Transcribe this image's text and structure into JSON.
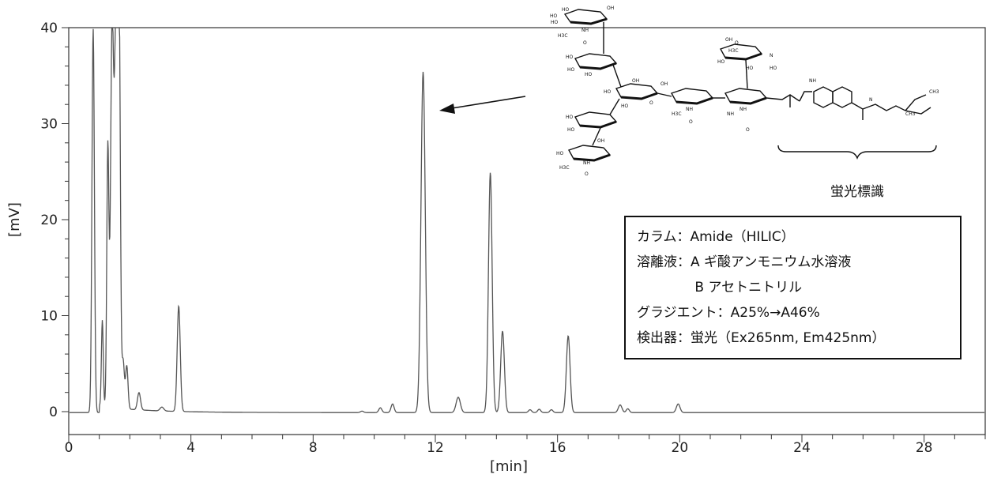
{
  "chart_data": {
    "type": "line",
    "title": "",
    "xlabel": "[min]",
    "ylabel": "[mV]",
    "xlim": [
      0,
      30
    ],
    "ylim": [
      -1,
      40
    ],
    "x_ticks": [
      0,
      4,
      8,
      12,
      16,
      20,
      24,
      28
    ],
    "y_ticks": [
      0,
      10,
      20,
      30,
      40
    ],
    "grid": false,
    "series": [
      {
        "baseline": -0.1,
        "peaks": [
          {
            "rt": 0.8,
            "height": 40.0,
            "width": 0.04
          },
          {
            "rt": 1.1,
            "height": 9.0,
            "width": 0.03
          },
          {
            "rt": 1.28,
            "height": 27.0,
            "width": 0.035
          },
          {
            "rt": 1.42,
            "height": 40.0,
            "width": 0.05
          },
          {
            "rt": 1.55,
            "height": 40.0,
            "width": 0.05
          },
          {
            "rt": 1.65,
            "height": 40.0,
            "width": 0.04
          },
          {
            "rt": 1.78,
            "height": 5.0,
            "width": 0.04
          },
          {
            "rt": 1.9,
            "height": 4.5,
            "width": 0.04
          },
          {
            "rt": 2.3,
            "height": 1.8,
            "width": 0.05
          },
          {
            "rt": 3.05,
            "height": 0.4,
            "width": 0.06
          },
          {
            "rt": 3.6,
            "height": 11.0,
            "width": 0.05
          },
          {
            "rt": 9.6,
            "height": 0.15,
            "width": 0.05
          },
          {
            "rt": 10.2,
            "height": 0.5,
            "width": 0.05
          },
          {
            "rt": 10.6,
            "height": 0.9,
            "width": 0.05
          },
          {
            "rt": 11.6,
            "height": 35.5,
            "width": 0.07
          },
          {
            "rt": 12.75,
            "height": 1.6,
            "width": 0.07
          },
          {
            "rt": 13.8,
            "height": 25.0,
            "width": 0.06
          },
          {
            "rt": 14.2,
            "height": 8.5,
            "width": 0.06
          },
          {
            "rt": 15.1,
            "height": 0.3,
            "width": 0.05
          },
          {
            "rt": 15.4,
            "height": 0.35,
            "width": 0.05
          },
          {
            "rt": 15.8,
            "height": 0.3,
            "width": 0.05
          },
          {
            "rt": 16.35,
            "height": 8.0,
            "width": 0.06
          },
          {
            "rt": 18.05,
            "height": 0.8,
            "width": 0.06
          },
          {
            "rt": 18.3,
            "height": 0.4,
            "width": 0.05
          },
          {
            "rt": 19.95,
            "height": 0.9,
            "width": 0.06
          }
        ]
      }
    ]
  },
  "annotation": {
    "label_fluor": "蛍光標識",
    "lines": [
      "カラム：Amide（HILIC）",
      "溶離液：A ギ酸アンモニウム水溶液",
      "　　　　 B アセトニトリル",
      "グラジエント：A25%→A46%",
      "検出器：蛍光（Ex265nm, Em425nm）"
    ]
  },
  "structure": {
    "labels": [
      "HO",
      "OH",
      "HO",
      "HO",
      "H3C",
      "NH",
      "O",
      "HO",
      "HO",
      "HO",
      "OH",
      "HO",
      "OH",
      "HO",
      "O",
      "H3C",
      "NH",
      "O",
      "HO",
      "HO",
      "OH",
      "HO",
      "H3C",
      "NH",
      "O",
      "NH",
      "NH",
      "O",
      "N",
      "NH",
      "O",
      "N",
      "CH3",
      "CH3",
      "OH",
      "HO",
      "HO",
      "HO",
      "H3C"
    ]
  }
}
